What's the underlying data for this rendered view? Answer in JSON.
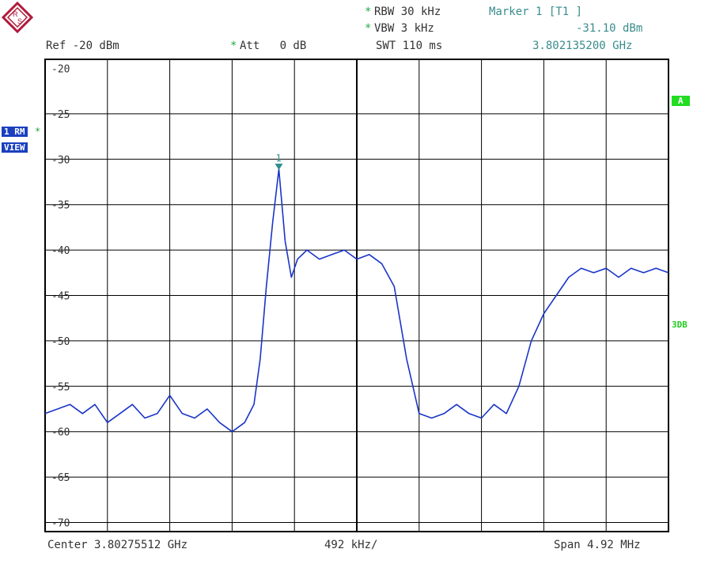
{
  "header": {
    "rbw": "RBW 30 kHz",
    "vbw": "VBW 3 kHz",
    "swt": "SWT 110 ms",
    "ref": "Ref -20 dBm",
    "att": "Att   0 dB",
    "marker_title": "Marker 1 [T1 ]",
    "marker_level": "-31.10 dBm",
    "marker_freq": "3.802135200 GHz",
    "star": "*"
  },
  "side": {
    "trace_badge": "1 RM",
    "view_badge": "VIEW",
    "star": "*",
    "a_badge": "A",
    "db_label": "3DB"
  },
  "footer": {
    "center": "Center 3.80275512 GHz",
    "div": "492 kHz/",
    "span": "Span 4.92 MHz"
  },
  "colors": {
    "trace": "#1a35c8",
    "grid": "#000000",
    "marker": "#2f8f8f",
    "badge_blue": "#1a3fbf",
    "badge_green": "#22dd22"
  },
  "chart_data": {
    "type": "line",
    "y_tick_labels": [
      "-20",
      "-25",
      "-30",
      "-35",
      "-40",
      "-45",
      "-50",
      "-55",
      "-60",
      "-65",
      "-70"
    ],
    "ylim": [
      -71,
      -19
    ],
    "xlim": [
      0,
      10
    ],
    "grid": true,
    "marker": {
      "label": "1",
      "x": 3.75,
      "y": -31.1
    },
    "series": [
      {
        "x": [
          0,
          0.2,
          0.4,
          0.6,
          0.8,
          1,
          1.2,
          1.4,
          1.6,
          1.8,
          2,
          2.2,
          2.4,
          2.6,
          2.8,
          3,
          3.2,
          3.35,
          3.45,
          3.55,
          3.65,
          3.75,
          3.85,
          3.95,
          4.05,
          4.2,
          4.4,
          4.6,
          4.8,
          5,
          5.2,
          5.4,
          5.6,
          5.8,
          6,
          6.2,
          6.4,
          6.6,
          6.8,
          7,
          7.2,
          7.4,
          7.6,
          7.8,
          8,
          8.2,
          8.4,
          8.6,
          8.8,
          9,
          9.2,
          9.4,
          9.6,
          9.8,
          10
        ],
        "y": [
          -58,
          -57.5,
          -57,
          -58,
          -57,
          -59,
          -58,
          -57,
          -58.5,
          -58,
          -56,
          -58,
          -58.5,
          -57.5,
          -59,
          -60,
          -59,
          -57,
          -52,
          -44,
          -37,
          -31.1,
          -39,
          -43,
          -41,
          -40,
          -41,
          -40.5,
          -40,
          -41,
          -40.5,
          -41.5,
          -44,
          -52,
          -58,
          -58.5,
          -58,
          -57,
          -58,
          -58.5,
          -57,
          -58,
          -55,
          -50,
          -47,
          -45,
          -43,
          -42,
          -42.5,
          -42,
          -43,
          -42,
          -42.5,
          -42,
          -42.5
        ]
      }
    ]
  }
}
